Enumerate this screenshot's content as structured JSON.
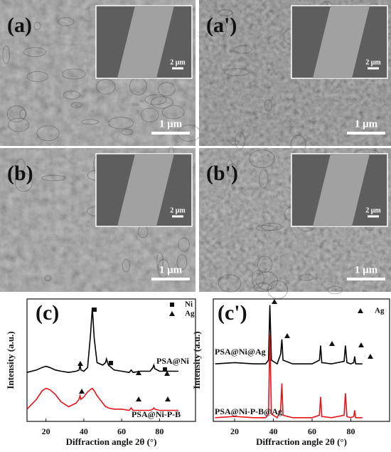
{
  "panels": [
    {
      "label": "(a)",
      "inset_scale": "2 μm",
      "scale": "1 μm"
    },
    {
      "label": "(a')",
      "inset_scale": "2 μm",
      "scale": "1 μm"
    },
    {
      "label": "(b)",
      "inset_scale": "2 μm",
      "scale": "1 μm"
    },
    {
      "label": "(b')",
      "inset_scale": "2 μm",
      "scale": "1 μm"
    }
  ],
  "chart_data": [
    {
      "type": "line",
      "panel_label": "(c)",
      "xlabel": "Diffraction angle 2θ (°)",
      "ylabel": "Intensity (a.u.)",
      "legend": [
        "Ni",
        "Ag"
      ],
      "x": [
        10,
        15,
        18,
        20,
        22,
        25,
        28,
        32,
        36,
        37.5,
        38,
        38.5,
        40,
        42,
        43.5,
        44.5,
        45.5,
        47,
        50,
        51.5,
        52,
        53,
        56,
        60,
        64,
        65,
        66,
        70,
        75,
        76.5,
        77,
        77.5,
        80,
        85,
        90
      ],
      "xlim": [
        10,
        99
      ],
      "xticks": [
        20,
        40,
        60,
        80
      ],
      "ylim": [
        0,
        100
      ],
      "series": [
        {
          "name": "PSA@Ni",
          "color": "#000000",
          "values": [
            40,
            42,
            44,
            45,
            44,
            42,
            41,
            40,
            41,
            42,
            46,
            42,
            41,
            44,
            70,
            93,
            68,
            48,
            46,
            48,
            51,
            46,
            42,
            41,
            40,
            42,
            40,
            41,
            41,
            44,
            46,
            43,
            41,
            41,
            41
          ]
        },
        {
          "name": "PSA@Ni-P-B",
          "color": "#e8141a",
          "values": [
            10,
            18,
            25,
            27,
            26,
            22,
            16,
            12,
            15,
            18,
            21,
            18,
            20,
            24,
            26,
            27,
            25,
            21,
            15,
            12,
            12,
            11,
            10,
            10,
            9,
            11,
            9,
            9,
            9,
            10,
            11,
            10,
            9,
            9,
            9
          ]
        }
      ]
    },
    {
      "type": "line",
      "panel_label": "(c')",
      "xlabel": "Diffraction angle 2θ (°)",
      "ylabel": "Intensity (a.u.)",
      "legend": [
        "Ag"
      ],
      "x": [
        10,
        20,
        30,
        36,
        37.5,
        38.2,
        39,
        42,
        43.8,
        44.4,
        45,
        50,
        60,
        63.8,
        64.4,
        65,
        70,
        76.5,
        77.2,
        78,
        80,
        81.5,
        82,
        82.5,
        86
      ],
      "xlim": [
        9,
        100
      ],
      "xticks": [
        20,
        40,
        60,
        80
      ],
      "ylim": [
        0,
        100
      ],
      "series": [
        {
          "name": "PSA@Ni@Ag",
          "color": "#000000",
          "values": [
            47,
            48,
            47,
            47,
            50,
            95,
            50,
            47,
            55,
            67,
            50,
            47,
            47,
            50,
            62,
            48,
            47,
            49,
            62,
            48,
            47,
            48,
            53,
            47,
            47
          ]
        },
        {
          "name": "PSA@Ni-P-B@Ag",
          "color": "#e8141a",
          "values": [
            3,
            4,
            3,
            3,
            6,
            71,
            6,
            3,
            10,
            31,
            5,
            3,
            3,
            5,
            20,
            4,
            3,
            5,
            23,
            4,
            3,
            4,
            9,
            3,
            3
          ]
        }
      ]
    }
  ]
}
